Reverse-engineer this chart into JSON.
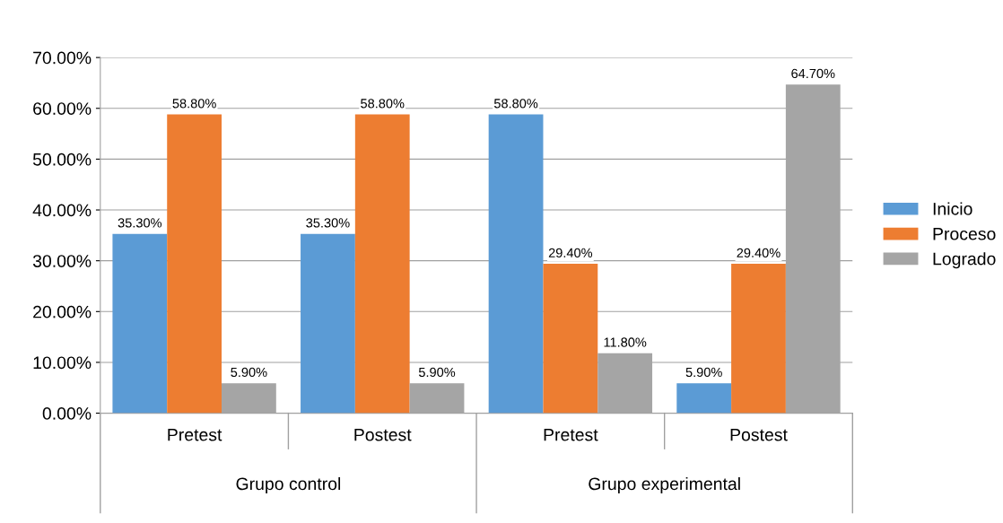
{
  "chart_data": {
    "type": "bar",
    "categories": [
      "Pretest",
      "Postest",
      "Pretest",
      "Postest"
    ],
    "series": [
      {
        "name": "Inicio",
        "color": "#5b9bd5",
        "values": [
          35.3,
          35.3,
          58.8,
          5.9
        ],
        "value_labels": [
          "35.30%",
          "35.30%",
          "58.80%",
          "5.90%"
        ]
      },
      {
        "name": "Proceso",
        "color": "#ed7d31",
        "values": [
          58.8,
          58.8,
          29.4,
          29.4
        ],
        "value_labels": [
          "58.80%",
          "58.80%",
          "29.40%",
          "29.40%"
        ]
      },
      {
        "name": "Logrado",
        "color": "#a5a5a5",
        "values": [
          5.9,
          5.9,
          11.8,
          64.7
        ],
        "value_labels": [
          "5.90%",
          "5.90%",
          "11.80%",
          "64.70%"
        ]
      }
    ],
    "ylim": [
      0,
      70
    ],
    "yticks": [
      {
        "value": 0,
        "label": "0.00%"
      },
      {
        "value": 10,
        "label": "10.00%"
      },
      {
        "value": 20,
        "label": "20.00%"
      },
      {
        "value": 30,
        "label": "30.00%"
      },
      {
        "value": 40,
        "label": "40.00%"
      },
      {
        "value": 50,
        "label": "50.00%"
      },
      {
        "value": 60,
        "label": "60.00%"
      },
      {
        "value": 70,
        "label": "70.00%"
      }
    ],
    "grid": "y",
    "legend": "right",
    "annotations": [
      "Grupo control",
      "Grupo experimental"
    ]
  }
}
